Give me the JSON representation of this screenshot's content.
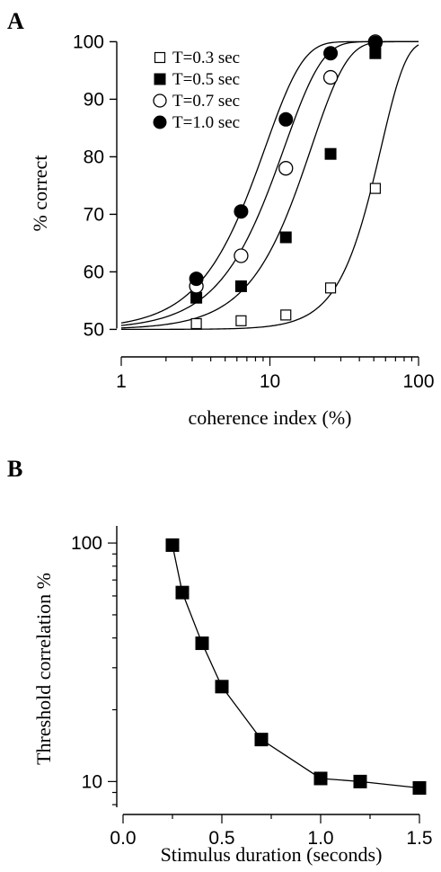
{
  "panels": {
    "a": {
      "letter": "A"
    },
    "b": {
      "letter": "B"
    }
  },
  "chart_data": [
    {
      "panel": "A",
      "type": "scatter",
      "xlabel": "coherence index (%)",
      "ylabel": "% correct",
      "x_scale": "log",
      "xlim": [
        1,
        100
      ],
      "ylim": [
        46,
        101
      ],
      "x_ticks": [
        1,
        10,
        100
      ],
      "y_ticks": [
        50,
        60,
        70,
        80,
        90,
        100
      ],
      "grid": false,
      "legend_position": "top-left",
      "series": [
        {
          "name": "T=0.3 sec",
          "marker": "open-square",
          "x": [
            3.2,
            6.4,
            12.8,
            25.6,
            51.2
          ],
          "y": [
            51,
            51.5,
            52.5,
            57.2,
            74.5
          ],
          "fit_threshold": 56,
          "fit_slope": 2.6
        },
        {
          "name": "T=0.5 sec",
          "marker": "filled-square",
          "x": [
            3.2,
            6.4,
            12.8,
            25.6,
            51.2
          ],
          "y": [
            55.5,
            57.5,
            66,
            80.5,
            98
          ],
          "fit_threshold": 19,
          "fit_slope": 1.8
        },
        {
          "name": "T=0.7 sec",
          "marker": "open-circle",
          "x": [
            3.2,
            6.4,
            12.8,
            25.6,
            51.2
          ],
          "y": [
            57.5,
            62.8,
            78,
            93.8,
            100
          ],
          "fit_threshold": 12.5,
          "fit_slope": 1.7
        },
        {
          "name": "T=1.0 sec",
          "marker": "filled-circle",
          "x": [
            3.2,
            6.4,
            12.8,
            25.6,
            51.2
          ],
          "y": [
            58.8,
            70.5,
            86.5,
            98,
            99.8
          ],
          "fit_threshold": 9.3,
          "fit_slope": 1.7
        }
      ]
    },
    {
      "panel": "B",
      "type": "line",
      "xlabel": "Stimulus duration (seconds)",
      "ylabel": "Threshold correlation %",
      "y_scale": "log",
      "xlim": [
        0,
        1.5
      ],
      "ylim": [
        7.8,
        118
      ],
      "x_ticks": [
        0.0,
        0.5,
        1.0,
        1.5
      ],
      "x_tick_labels": [
        "0.0",
        "0.5",
        "1.0",
        "1.5"
      ],
      "y_ticks": [
        10,
        100
      ],
      "grid": false,
      "series": [
        {
          "marker": "filled-square",
          "x": [
            0.25,
            0.3,
            0.4,
            0.5,
            0.7,
            1.0,
            1.2,
            1.5
          ],
          "y": [
            98,
            62,
            38,
            25,
            15,
            10.3,
            10.0,
            9.4
          ]
        }
      ]
    }
  ]
}
